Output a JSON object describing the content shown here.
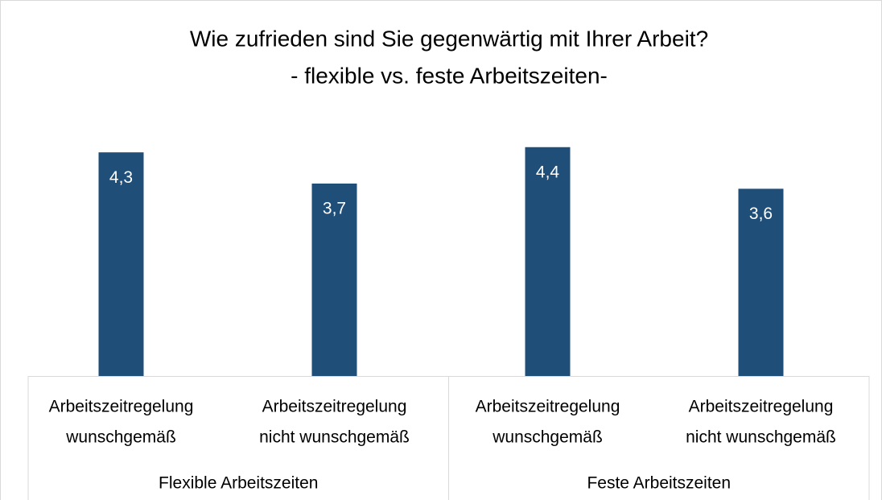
{
  "chart_data": {
    "type": "bar",
    "title": [
      "Wie zufrieden sind Sie gegenwärtig mit Ihrer Arbeit?",
      "- flexible vs. feste Arbeitszeiten-"
    ],
    "categories": [
      [
        "Arbeitszeitregelung",
        "wunschgemäß"
      ],
      [
        "Arbeitszeitregelung",
        "nicht wunschgemäß"
      ],
      [
        "Arbeitszeitregelung",
        "wunschgemäß"
      ],
      [
        "Arbeitszeitregelung",
        "nicht wunschgemäß"
      ]
    ],
    "category_groups": [
      "Flexible Arbeitszeiten",
      "Feste Arbeitszeiten"
    ],
    "values": [
      4.3,
      3.7,
      4.4,
      3.6
    ],
    "value_labels": [
      "4,3",
      "3,7",
      "4,4",
      "3,6"
    ],
    "color": "#1f4e79",
    "ylim": [
      0,
      5
    ]
  }
}
